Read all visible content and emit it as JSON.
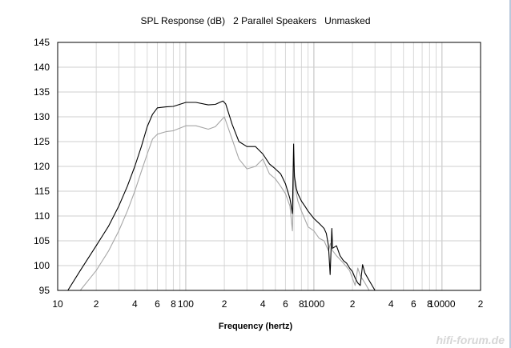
{
  "chart_data": {
    "type": "line",
    "title": "SPL Response (dB)   2 Parallel Speakers   Unmasked",
    "xlabel": "Frequency (hertz)",
    "ylabel": "",
    "xscale": "log",
    "xlim": [
      10,
      20000
    ],
    "ylim": [
      95,
      145
    ],
    "grid": true,
    "legend": "none",
    "y_ticks": [
      "145",
      "140",
      "135",
      "130",
      "125",
      "120",
      "115",
      "110",
      "105",
      "100",
      "95"
    ],
    "y_tick_values": [
      145,
      140,
      135,
      130,
      125,
      120,
      115,
      110,
      105,
      100,
      95
    ],
    "x_ticks": [
      {
        "label": "10",
        "value": 10
      },
      {
        "label": "2",
        "value": 20
      },
      {
        "label": "4",
        "value": 40
      },
      {
        "label": "6",
        "value": 60
      },
      {
        "label": "8",
        "value": 80
      },
      {
        "label": "100",
        "value": 100
      },
      {
        "label": "2",
        "value": 200
      },
      {
        "label": "4",
        "value": 400
      },
      {
        "label": "6",
        "value": 600
      },
      {
        "label": "8",
        "value": 800
      },
      {
        "label": "1000",
        "value": 1000
      },
      {
        "label": "2",
        "value": 2000
      },
      {
        "label": "4",
        "value": 4000
      },
      {
        "label": "6",
        "value": 6000
      },
      {
        "label": "8",
        "value": 8000
      },
      {
        "label": "10000",
        "value": 10000
      },
      {
        "label": "2",
        "value": 20000
      }
    ],
    "series": [
      {
        "color": "#000000",
        "x": [
          12,
          15,
          20,
          25,
          30,
          35,
          40,
          45,
          50,
          55,
          60,
          70,
          80,
          100,
          120,
          150,
          170,
          195,
          205,
          230,
          260,
          300,
          350,
          400,
          450,
          500,
          550,
          600,
          650,
          680,
          695,
          705,
          715,
          730,
          750,
          800,
          850,
          900,
          1000,
          1100,
          1200,
          1250,
          1300,
          1340,
          1380,
          1400,
          1500,
          1600,
          1700,
          1800,
          1900,
          2000,
          2100,
          2200,
          2300,
          2400,
          2500,
          2700,
          3000
        ],
        "y": [
          95,
          99,
          104,
          108,
          112,
          116,
          120,
          124,
          128,
          130.5,
          131.8,
          132,
          132.1,
          132.9,
          132.9,
          132.4,
          132.5,
          133.2,
          132.6,
          128.5,
          125,
          124,
          124,
          122.5,
          120.5,
          119.5,
          118.5,
          116.5,
          113.5,
          110.5,
          124.5,
          118,
          117,
          115.5,
          114.5,
          113,
          112,
          111,
          109.5,
          108.5,
          107.5,
          106.5,
          104,
          98.2,
          107.5,
          103.5,
          104,
          102,
          101,
          100.5,
          99.5,
          98.8,
          97.5,
          96.5,
          96,
          100.2,
          98.5,
          97,
          95
        ]
      },
      {
        "color": "#a6a6a6",
        "x": [
          15,
          20,
          25,
          30,
          35,
          40,
          45,
          50,
          55,
          60,
          70,
          80,
          100,
          120,
          150,
          170,
          200,
          230,
          260,
          300,
          350,
          400,
          450,
          500,
          550,
          600,
          650,
          680,
          700,
          715,
          730,
          750,
          800,
          900,
          1000,
          1100,
          1200,
          1300,
          1350,
          1400,
          1500,
          1700,
          1900,
          2100,
          2200,
          2300,
          2500,
          2700
        ],
        "y": [
          95,
          99,
          103,
          107,
          111,
          115,
          119,
          122.5,
          125.5,
          126.5,
          127,
          127.2,
          128.2,
          128.2,
          127.5,
          128,
          130,
          125.5,
          121.5,
          119.5,
          120,
          121.5,
          118.5,
          117.5,
          116,
          114.5,
          112,
          107,
          119.5,
          116,
          114.5,
          113,
          111,
          107.8,
          107,
          105.5,
          105,
          103,
          104.5,
          103,
          102,
          100.5,
          99,
          96,
          99.5,
          98,
          96.5,
          95
        ]
      }
    ]
  },
  "watermark": "hifi-forum.de"
}
